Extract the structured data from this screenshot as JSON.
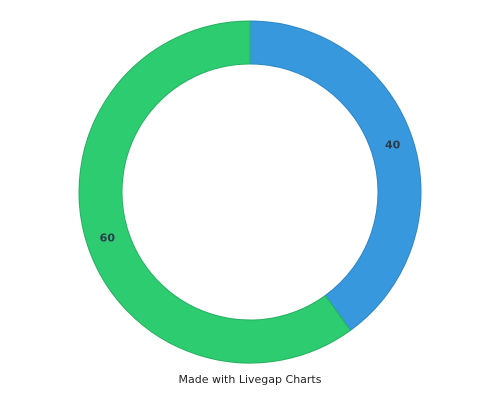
{
  "chart_data": {
    "type": "pie",
    "variant": "donut",
    "slices": [
      {
        "value": 40,
        "label": "40",
        "color": "#3898de",
        "stroke": "#2f86c6"
      },
      {
        "value": 60,
        "label": "60",
        "color": "#2ecc71",
        "stroke": "#27b061"
      }
    ],
    "start": "top",
    "direction": "clockwise"
  },
  "footer": {
    "credit": "Made with Livegap Charts"
  }
}
